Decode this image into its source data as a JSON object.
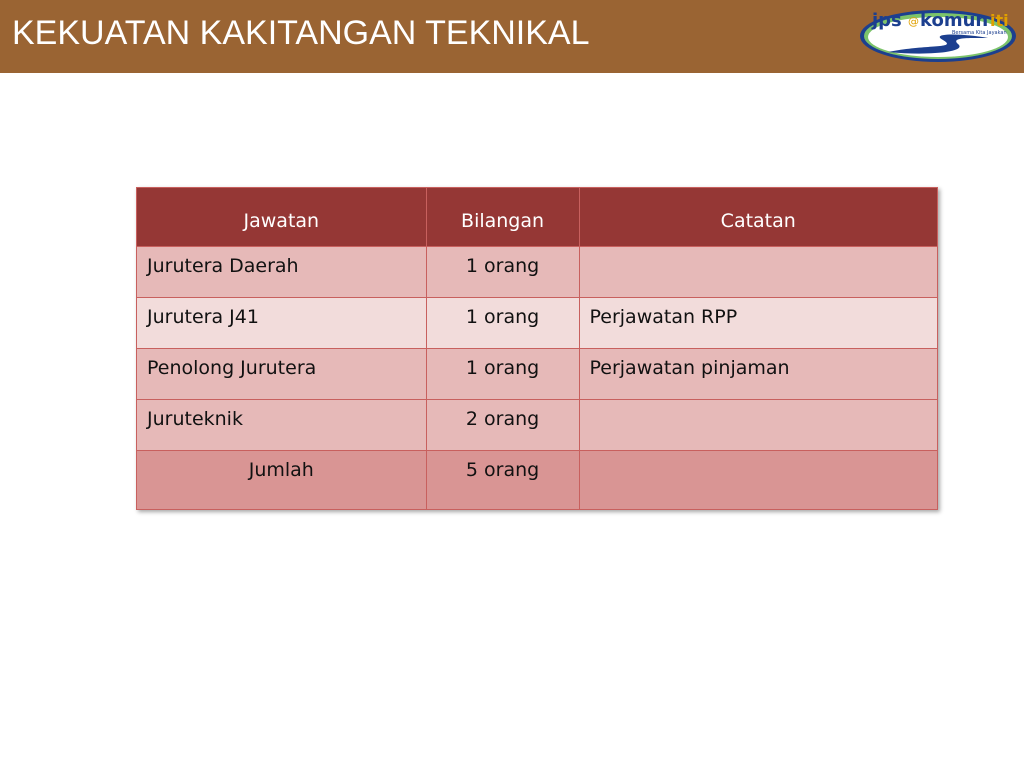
{
  "slide": {
    "title": "KEKUATAN KAKITANGAN TEKNIKAL",
    "logo": {
      "text": "jps@komuniti",
      "tagline": "Bersama Kita Jayakan"
    },
    "colors": {
      "header": "#9a6433",
      "table_header": "#953735",
      "row_odd": "#e6b9b8",
      "row_even": "#f2dcdb",
      "total_row": "#d99594"
    }
  },
  "table": {
    "headers": [
      "Jawatan",
      "Bilangan",
      "Catatan"
    ],
    "rows": [
      [
        "Jurutera Daerah",
        "1 orang",
        ""
      ],
      [
        "Jurutera J41",
        "1 orang",
        "Perjawatan RPP"
      ],
      [
        "Penolong Jurutera",
        "1 orang",
        "Perjawatan pinjaman"
      ],
      [
        "Juruteknik",
        "2 orang",
        ""
      ]
    ],
    "total": [
      "Jumlah",
      "5 orang",
      ""
    ]
  }
}
